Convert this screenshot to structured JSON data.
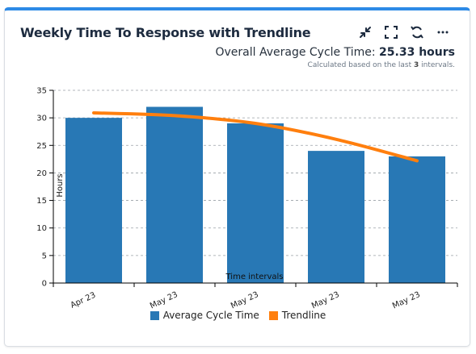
{
  "widget": {
    "title": "Weekly Time To Response with Trendline",
    "summary_label": "Overall Average Cycle Time:",
    "summary_value": "25.33 hours",
    "note_prefix": "Calculated based on the last",
    "note_count": "3",
    "note_suffix": "intervals.",
    "tools": [
      "collapse-icon",
      "fullscreen-icon",
      "refresh-icon",
      "more-icon"
    ]
  },
  "colors": {
    "bar": "#2878b5",
    "trend": "#ff7f0e",
    "accent": "#2d8ae6"
  },
  "chart_data": {
    "type": "bar",
    "categories": [
      "Apr 23",
      "May 23",
      "May 23",
      "May 23",
      "May 23"
    ],
    "series": [
      {
        "name": "Average Cycle Time",
        "type": "bar",
        "values": [
          30,
          32,
          29,
          24,
          23
        ]
      },
      {
        "name": "Trendline",
        "type": "line",
        "values": [
          30.9,
          30.4,
          29.0,
          26.1,
          22.2
        ]
      }
    ],
    "xlabel": "Time intervals",
    "ylabel": "Hours",
    "ylim": [
      0,
      35
    ],
    "yticks": [
      0,
      5,
      10,
      15,
      20,
      25,
      30,
      35
    ],
    "grid": true,
    "legend": "bottom"
  }
}
